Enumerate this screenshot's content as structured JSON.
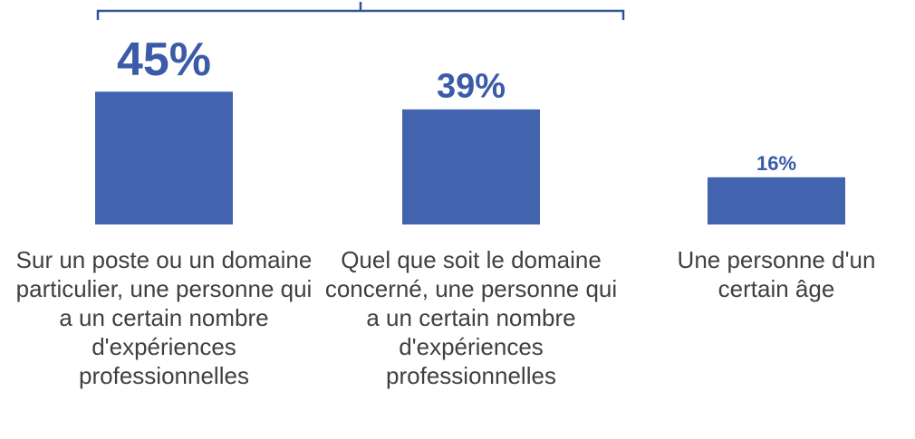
{
  "chart_data": {
    "type": "bar",
    "categories": [
      "Sur un poste ou un domaine particulier, une personne qui a un certain nombre d'expériences professionnelles",
      "Quel que soit le domaine concerné, une personne qui a un certain nombre d'expériences professionnelles",
      "Une personne d'un certain âge"
    ],
    "values": [
      45,
      39,
      16
    ],
    "value_labels": [
      "45%",
      "39%",
      "16%"
    ],
    "color": "#4264ae"
  }
}
